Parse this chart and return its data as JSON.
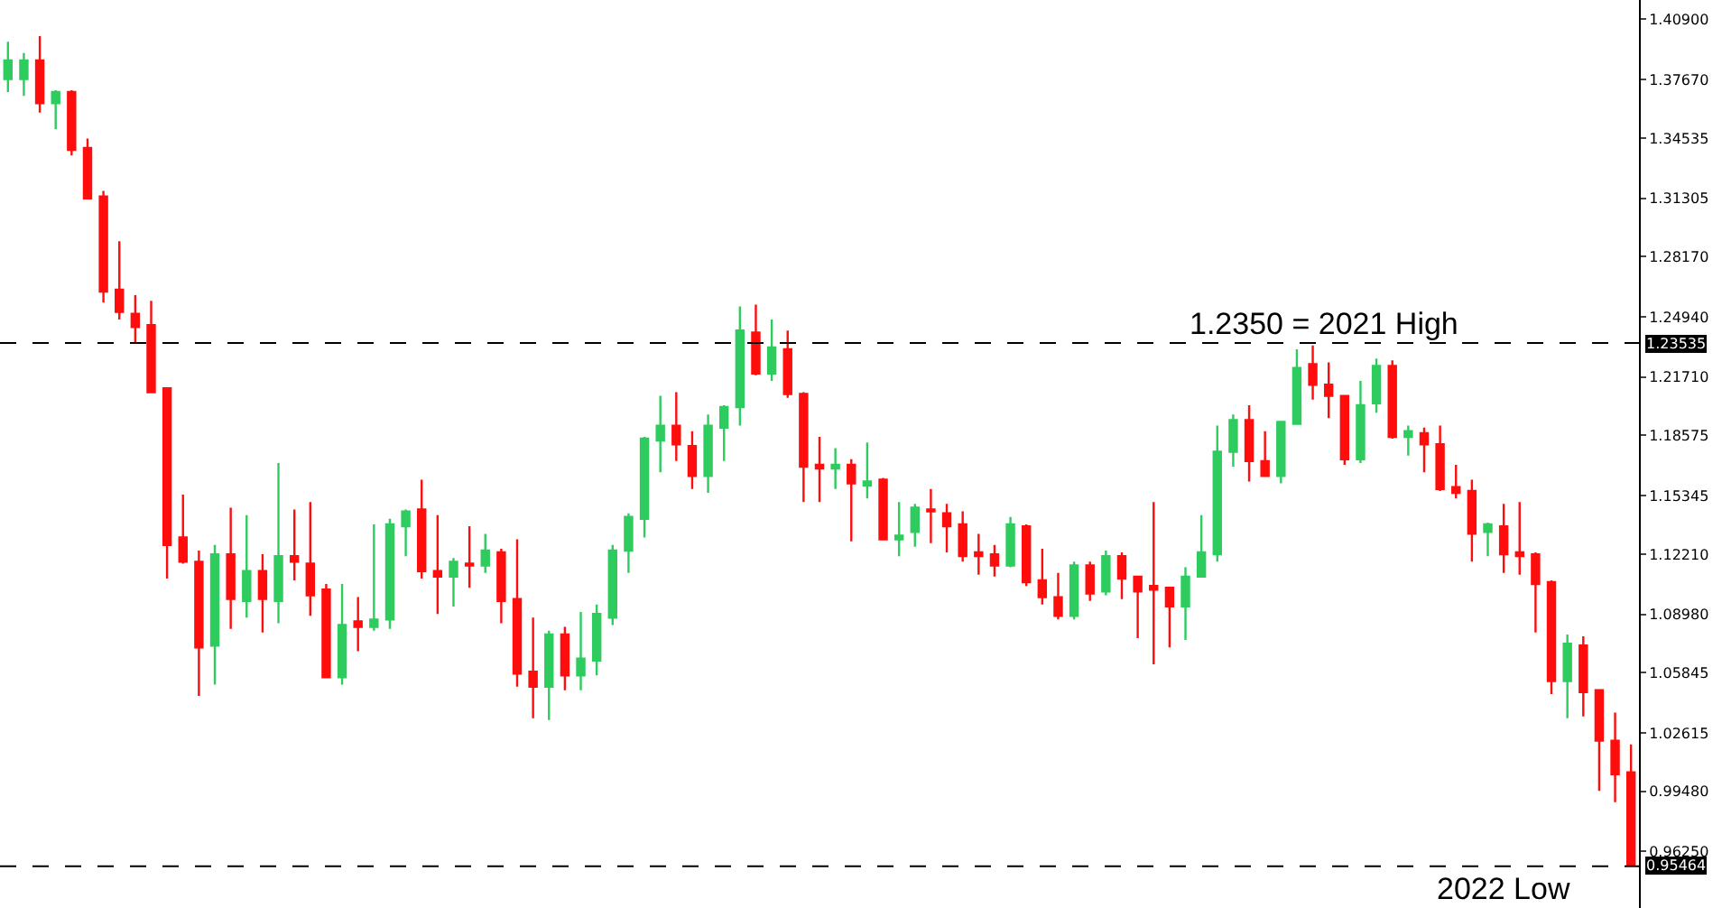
{
  "chart_data": {
    "type": "candlestick",
    "categories": [
      null,
      null,
      null,
      null,
      null,
      null,
      null,
      null,
      null,
      null,
      null,
      null,
      null,
      null,
      null,
      null,
      null,
      null,
      null,
      null,
      null,
      null,
      null,
      null,
      null,
      null,
      null,
      null,
      null,
      null,
      null,
      null,
      null,
      null,
      null,
      null,
      null,
      null,
      null,
      null,
      null,
      null,
      null,
      null,
      null,
      null,
      null,
      null,
      null,
      null,
      null,
      null,
      null,
      null,
      null,
      null,
      null,
      null,
      null,
      null,
      null,
      null,
      null,
      null,
      null,
      null,
      null,
      null,
      null,
      null,
      null,
      null,
      null,
      null,
      null,
      null,
      null,
      null,
      null,
      null,
      null,
      null,
      null,
      null,
      null,
      null,
      null,
      null,
      null,
      null,
      null,
      null,
      null,
      null,
      null,
      null,
      null,
      null,
      null,
      null,
      null,
      null,
      null
    ],
    "ohlc": [
      [
        1.377,
        1.397,
        1.37,
        1.387
      ],
      [
        1.377,
        1.391,
        1.368,
        1.387
      ],
      [
        1.387,
        1.4,
        1.359,
        1.364
      ],
      [
        1.364,
        1.371,
        1.35,
        1.37
      ],
      [
        1.37,
        1.371,
        1.336,
        1.339
      ],
      [
        1.34,
        1.345,
        1.313,
        1.313
      ],
      [
        1.314,
        1.317,
        1.257,
        1.263
      ],
      [
        1.264,
        1.29,
        1.248,
        1.252
      ],
      [
        1.251,
        1.261,
        1.235,
        1.244
      ],
      [
        1.245,
        1.258,
        1.209,
        1.209
      ],
      [
        1.211,
        1.211,
        1.109,
        1.127
      ],
      [
        1.131,
        1.154,
        1.117,
        1.118
      ],
      [
        1.118,
        1.124,
        1.046,
        1.072
      ],
      [
        1.073,
        1.127,
        1.052,
        1.122
      ],
      [
        1.122,
        1.147,
        1.082,
        1.098
      ],
      [
        1.097,
        1.143,
        1.088,
        1.113
      ],
      [
        1.113,
        1.122,
        1.08,
        1.098
      ],
      [
        1.097,
        1.171,
        1.085,
        1.121
      ],
      [
        1.121,
        1.146,
        1.108,
        1.118
      ],
      [
        1.117,
        1.15,
        1.089,
        1.1
      ],
      [
        1.103,
        1.106,
        1.056,
        1.056
      ],
      [
        1.056,
        1.106,
        1.052,
        1.084
      ],
      [
        1.086,
        1.099,
        1.07,
        1.083
      ],
      [
        1.083,
        1.138,
        1.081,
        1.087
      ],
      [
        1.087,
        1.141,
        1.082,
        1.138
      ],
      [
        1.137,
        1.146,
        1.121,
        1.145
      ],
      [
        1.146,
        1.162,
        1.109,
        1.113
      ],
      [
        1.113,
        1.143,
        1.09,
        1.11
      ],
      [
        1.11,
        1.12,
        1.094,
        1.118
      ],
      [
        1.117,
        1.137,
        1.104,
        1.116
      ],
      [
        1.116,
        1.133,
        1.112,
        1.124
      ],
      [
        1.123,
        1.125,
        1.085,
        1.097
      ],
      [
        1.098,
        1.13,
        1.051,
        1.058
      ],
      [
        1.059,
        1.088,
        1.034,
        1.051
      ],
      [
        1.051,
        1.081,
        1.033,
        1.079
      ],
      [
        1.079,
        1.083,
        1.049,
        1.057
      ],
      [
        1.057,
        1.091,
        1.049,
        1.066
      ],
      [
        1.065,
        1.095,
        1.057,
        1.09
      ],
      [
        1.088,
        1.127,
        1.084,
        1.124
      ],
      [
        1.124,
        1.144,
        1.112,
        1.142
      ],
      [
        1.141,
        1.185,
        1.131,
        1.184
      ],
      [
        1.183,
        1.207,
        1.166,
        1.191
      ],
      [
        1.191,
        1.209,
        1.172,
        1.181
      ],
      [
        1.18,
        1.188,
        1.157,
        1.164
      ],
      [
        1.164,
        1.197,
        1.155,
        1.191
      ],
      [
        1.19,
        1.202,
        1.172,
        1.201
      ],
      [
        1.201,
        1.255,
        1.191,
        1.242
      ],
      [
        1.241,
        1.256,
        1.218,
        1.219
      ],
      [
        1.219,
        1.248,
        1.215,
        1.233
      ],
      [
        1.232,
        1.242,
        1.206,
        1.208
      ],
      [
        1.208,
        1.209,
        1.15,
        1.169
      ],
      [
        1.17,
        1.185,
        1.15,
        1.168
      ],
      [
        1.168,
        1.179,
        1.157,
        1.17
      ],
      [
        1.17,
        1.173,
        1.129,
        1.16
      ],
      [
        1.159,
        1.182,
        1.152,
        1.161
      ],
      [
        1.162,
        1.163,
        1.13,
        1.13
      ],
      [
        1.13,
        1.15,
        1.121,
        1.132
      ],
      [
        1.134,
        1.149,
        1.126,
        1.147
      ],
      [
        1.146,
        1.157,
        1.128,
        1.145
      ],
      [
        1.144,
        1.149,
        1.123,
        1.137
      ],
      [
        1.138,
        1.145,
        1.118,
        1.121
      ],
      [
        1.123,
        1.133,
        1.111,
        1.121
      ],
      [
        1.122,
        1.127,
        1.11,
        1.116
      ],
      [
        1.116,
        1.142,
        1.115,
        1.138
      ],
      [
        1.137,
        1.138,
        1.105,
        1.107
      ],
      [
        1.108,
        1.125,
        1.095,
        1.099
      ],
      [
        1.099,
        1.112,
        1.087,
        1.089
      ],
      [
        1.089,
        1.118,
        1.087,
        1.116
      ],
      [
        1.116,
        1.118,
        1.097,
        1.101
      ],
      [
        1.102,
        1.124,
        1.1,
        1.121
      ],
      [
        1.121,
        1.123,
        1.098,
        1.109
      ],
      [
        1.11,
        1.11,
        1.077,
        1.102
      ],
      [
        1.105,
        1.15,
        1.063,
        1.103
      ],
      [
        1.104,
        1.104,
        1.072,
        1.094
      ],
      [
        1.094,
        1.115,
        1.076,
        1.11
      ],
      [
        1.11,
        1.143,
        1.11,
        1.123
      ],
      [
        1.122,
        1.191,
        1.118,
        1.177
      ],
      [
        1.177,
        1.197,
        1.169,
        1.194
      ],
      [
        1.194,
        1.202,
        1.161,
        1.172
      ],
      [
        1.172,
        1.188,
        1.164,
        1.164
      ],
      [
        1.164,
        1.193,
        1.16,
        1.193
      ],
      [
        1.192,
        1.232,
        1.192,
        1.222
      ],
      [
        1.224,
        1.234,
        1.205,
        1.213
      ],
      [
        1.213,
        1.225,
        1.195,
        1.207
      ],
      [
        1.207,
        1.207,
        1.17,
        1.173
      ],
      [
        1.173,
        1.215,
        1.171,
        1.202
      ],
      [
        1.203,
        1.227,
        1.198,
        1.223
      ],
      [
        1.223,
        1.226,
        1.184,
        1.185
      ],
      [
        1.185,
        1.191,
        1.175,
        1.188
      ],
      [
        1.187,
        1.19,
        1.166,
        1.181
      ],
      [
        1.181,
        1.191,
        1.156,
        1.157
      ],
      [
        1.158,
        1.17,
        1.152,
        1.155
      ],
      [
        1.156,
        1.162,
        1.118,
        1.133
      ],
      [
        1.134,
        1.139,
        1.121,
        1.138
      ],
      [
        1.137,
        1.149,
        1.112,
        1.122
      ],
      [
        1.123,
        1.15,
        1.111,
        1.121
      ],
      [
        1.122,
        1.123,
        1.08,
        1.106
      ],
      [
        1.107,
        1.108,
        1.047,
        1.054
      ],
      [
        1.054,
        1.079,
        1.034,
        1.074
      ],
      [
        1.073,
        1.078,
        1.035,
        1.048
      ],
      [
        1.049,
        1.049,
        0.995,
        1.022
      ],
      [
        1.022,
        1.037,
        0.989,
        1.004
      ],
      [
        1.005,
        1.02,
        0.955,
        0.955
      ]
    ],
    "colors": [
      "#2ecc5f",
      "#2ecc5f",
      "#ff0d0d",
      "#2ecc5f",
      "#ff0d0d",
      "#ff0d0d",
      "#ff0d0d",
      "#ff0d0d",
      "#ff0d0d",
      "#ff0d0d",
      "#ff0d0d",
      "#ff0d0d",
      "#ff0d0d",
      "#2ecc5f",
      "#ff0d0d",
      "#2ecc5f",
      "#ff0d0d",
      "#2ecc5f",
      "#ff0d0d",
      "#ff0d0d",
      "#ff0d0d",
      "#2ecc5f",
      "#ff0d0d",
      "#2ecc5f",
      "#2ecc5f",
      "#2ecc5f",
      "#ff0d0d",
      "#ff0d0d",
      "#2ecc5f",
      "#ff0d0d",
      "#2ecc5f",
      "#ff0d0d",
      "#ff0d0d",
      "#ff0d0d",
      "#2ecc5f",
      "#ff0d0d",
      "#2ecc5f",
      "#2ecc5f",
      "#2ecc5f",
      "#2ecc5f",
      "#2ecc5f",
      "#2ecc5f",
      "#ff0d0d",
      "#ff0d0d",
      "#2ecc5f",
      "#2ecc5f",
      "#2ecc5f",
      "#ff0d0d",
      "#2ecc5f",
      "#ff0d0d",
      "#ff0d0d",
      "#ff0d0d",
      "#2ecc5f",
      "#ff0d0d",
      "#2ecc5f",
      "#ff0d0d",
      "#2ecc5f",
      "#2ecc5f",
      "#ff0d0d",
      "#ff0d0d",
      "#ff0d0d",
      "#ff0d0d",
      "#ff0d0d",
      "#2ecc5f",
      "#ff0d0d",
      "#ff0d0d",
      "#ff0d0d",
      "#2ecc5f",
      "#ff0d0d",
      "#2ecc5f",
      "#ff0d0d",
      "#ff0d0d",
      "#ff0d0d",
      "#ff0d0d",
      "#2ecc5f",
      "#2ecc5f",
      "#2ecc5f",
      "#2ecc5f",
      "#ff0d0d",
      "#ff0d0d",
      "#2ecc5f",
      "#2ecc5f",
      "#ff0d0d",
      "#ff0d0d",
      "#ff0d0d",
      "#2ecc5f",
      "#2ecc5f",
      "#ff0d0d",
      "#2ecc5f",
      "#ff0d0d",
      "#ff0d0d",
      "#ff0d0d",
      "#ff0d0d",
      "#2ecc5f",
      "#ff0d0d",
      "#ff0d0d",
      "#ff0d0d",
      "#ff0d0d",
      "#2ecc5f",
      "#ff0d0d",
      "#ff0d0d",
      "#ff0d0d",
      "#ff0d0d"
    ],
    "ylim": [
      0.9322,
      1.4194
    ],
    "yticks": [
      {
        "value": 1.409,
        "label": "1.40900"
      },
      {
        "value": 1.3767,
        "label": "1.37670"
      },
      {
        "value": 1.34535,
        "label": "1.34535"
      },
      {
        "value": 1.31305,
        "label": "1.31305"
      },
      {
        "value": 1.2817,
        "label": "1.28170"
      },
      {
        "value": 1.2494,
        "label": "1.24940"
      },
      {
        "value": 1.2171,
        "label": "1.21710"
      },
      {
        "value": 1.18575,
        "label": "1.18575"
      },
      {
        "value": 1.15345,
        "label": "1.15345"
      },
      {
        "value": 1.1221,
        "label": "1.12210"
      },
      {
        "value": 1.0898,
        "label": "1.08980"
      },
      {
        "value": 1.05845,
        "label": "1.05845"
      },
      {
        "value": 1.02615,
        "label": "1.02615"
      },
      {
        "value": 0.9948,
        "label": "0.99480"
      },
      {
        "value": 0.9625,
        "label": "0.96250"
      }
    ],
    "tick_labels": "y",
    "ref_lines": [
      {
        "axis": "y",
        "value": 1.23535,
        "label": "1.23535",
        "color": "#000000",
        "line_style": "dashed"
      },
      {
        "axis": "y",
        "value": 0.95464,
        "label": "0.95464",
        "color": "#000000",
        "line_style": "dashed"
      }
    ],
    "annotations": [
      {
        "text": "1.2350 = 2021 High",
        "y": 1.23535
      },
      {
        "text": "2022 Low",
        "y": 0.95464
      }
    ]
  }
}
